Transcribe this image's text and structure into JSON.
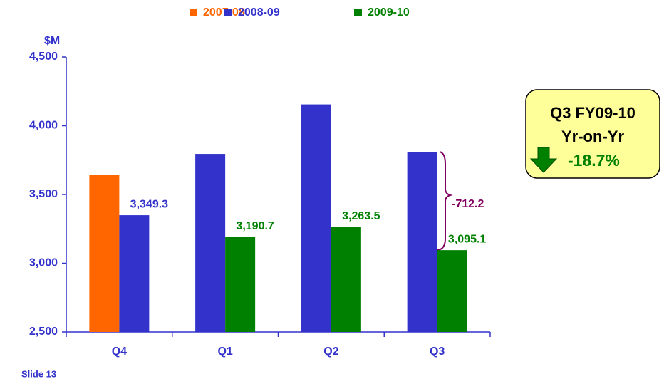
{
  "chart_data": {
    "type": "bar",
    "y_label": "$M",
    "categories": [
      "Q4",
      "Q1",
      "Q2",
      "Q3"
    ],
    "series": [
      {
        "name": "2007-08",
        "color": "#ff6600",
        "values": [
          3645,
          null,
          null,
          null
        ]
      },
      {
        "name": "2008-09",
        "color": "#3333cc",
        "values": [
          3349.3,
          3795,
          4155,
          3807.3
        ],
        "value_labels": [
          "3,349.3",
          null,
          null,
          null
        ]
      },
      {
        "name": "2009-10",
        "color": "#008000",
        "values": [
          null,
          3190.7,
          3263.5,
          3095.1
        ],
        "value_labels": [
          null,
          "3,190.7",
          "3,263.5",
          "3,095.1"
        ]
      }
    ],
    "ylim": [
      2500,
      4500
    ],
    "yticks": [
      {
        "value": 2500,
        "label": "2,500"
      },
      {
        "value": 3000,
        "label": "3,000"
      },
      {
        "value": 3500,
        "label": "3,500"
      },
      {
        "value": 4000,
        "label": "4,000"
      },
      {
        "value": 4500,
        "label": "4,500"
      }
    ],
    "grid": false,
    "legend": "top",
    "annotations": {
      "difference": "-712.2",
      "box_title": "Q3 FY09-10",
      "box_subtitle": "Yr-on-Yr",
      "change": "-18.7%"
    }
  },
  "footer": "Slide 13"
}
